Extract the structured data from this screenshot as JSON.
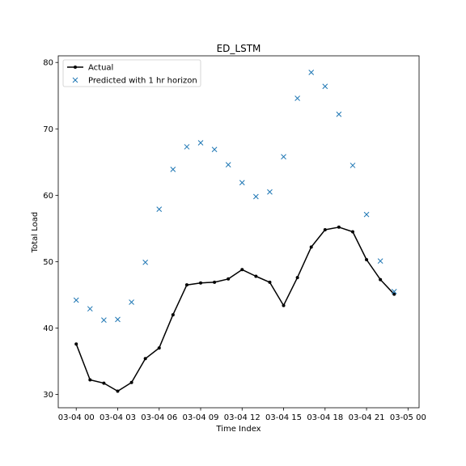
{
  "chart_data": {
    "type": "line",
    "title": "ED_LSTM",
    "xlabel": "Time Index",
    "ylabel": "Total Load",
    "x_tick_labels": [
      "03-04 00",
      "03-04 03",
      "03-04 06",
      "03-04 09",
      "03-04 12",
      "03-04 15",
      "03-04 18",
      "03-04 21",
      "03-05 00"
    ],
    "x_tick_hours": [
      0,
      3,
      6,
      9,
      12,
      15,
      18,
      21,
      24
    ],
    "y_ticks": [
      30,
      40,
      50,
      60,
      70,
      80
    ],
    "xlim_hours": [
      -1.3,
      24.8
    ],
    "ylim": [
      28.0,
      81.0
    ],
    "legend_position": "upper left",
    "grid": false,
    "series": [
      {
        "name": "Actual",
        "style": "line-with-dots",
        "color": "#000000",
        "x_hours": [
          0,
          1,
          2,
          3,
          4,
          5,
          6,
          7,
          8,
          9,
          10,
          11,
          12,
          13,
          14,
          15,
          16,
          17,
          18,
          19,
          20,
          21,
          22,
          23
        ],
        "values": [
          37.6,
          32.2,
          31.7,
          30.5,
          31.8,
          35.4,
          37.0,
          42.0,
          46.5,
          46.8,
          46.9,
          47.4,
          48.8,
          47.8,
          46.9,
          43.4,
          47.6,
          52.2,
          54.8,
          55.2,
          54.5,
          50.3,
          47.3,
          45.1
        ]
      },
      {
        "name": "Predicted with 1 hr horizon",
        "style": "x-markers",
        "color": "#1f77b4",
        "x_hours": [
          0,
          1,
          2,
          3,
          4,
          5,
          6,
          7,
          8,
          9,
          10,
          11,
          12,
          13,
          14,
          15,
          16,
          17,
          18,
          19,
          20,
          21,
          22,
          23
        ],
        "values": [
          44.2,
          42.9,
          41.2,
          41.3,
          43.9,
          49.9,
          57.9,
          63.9,
          67.3,
          67.9,
          66.9,
          64.6,
          61.9,
          59.8,
          60.5,
          65.8,
          74.6,
          78.5,
          76.4,
          72.2,
          64.5,
          57.1,
          50.1,
          45.5
        ]
      }
    ]
  }
}
